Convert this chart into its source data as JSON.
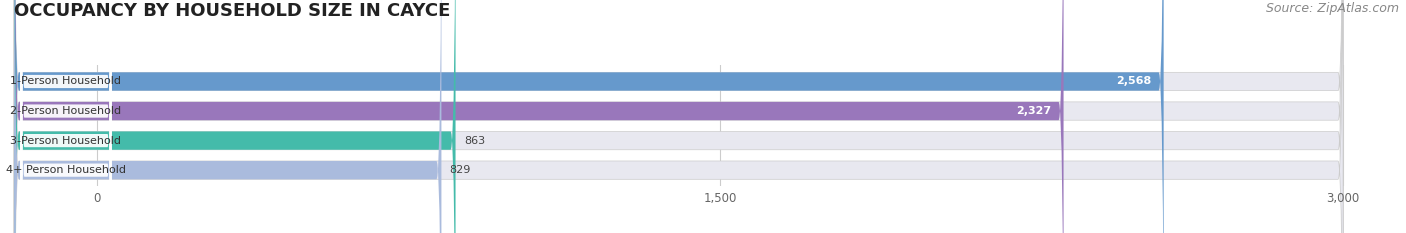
{
  "title": "OCCUPANCY BY HOUSEHOLD SIZE IN CAYCE",
  "source": "Source: ZipAtlas.com",
  "categories": [
    "1-Person Household",
    "2-Person Household",
    "3-Person Household",
    "4+ Person Household"
  ],
  "values": [
    2568,
    2327,
    863,
    829
  ],
  "bar_colors": [
    "#6699cc",
    "#9977bb",
    "#44bbaa",
    "#aabbdd"
  ],
  "label_colors": [
    "white",
    "white",
    "#555555",
    "#555555"
  ],
  "xlim": [
    0,
    3000
  ],
  "xticks": [
    0,
    1500,
    3000
  ],
  "background_color": "#ffffff",
  "bar_bg_color": "#e8e8f0",
  "title_fontsize": 13,
  "source_fontsize": 9,
  "bar_height": 0.62,
  "figsize": [
    14.06,
    2.33
  ],
  "dpi": 100
}
